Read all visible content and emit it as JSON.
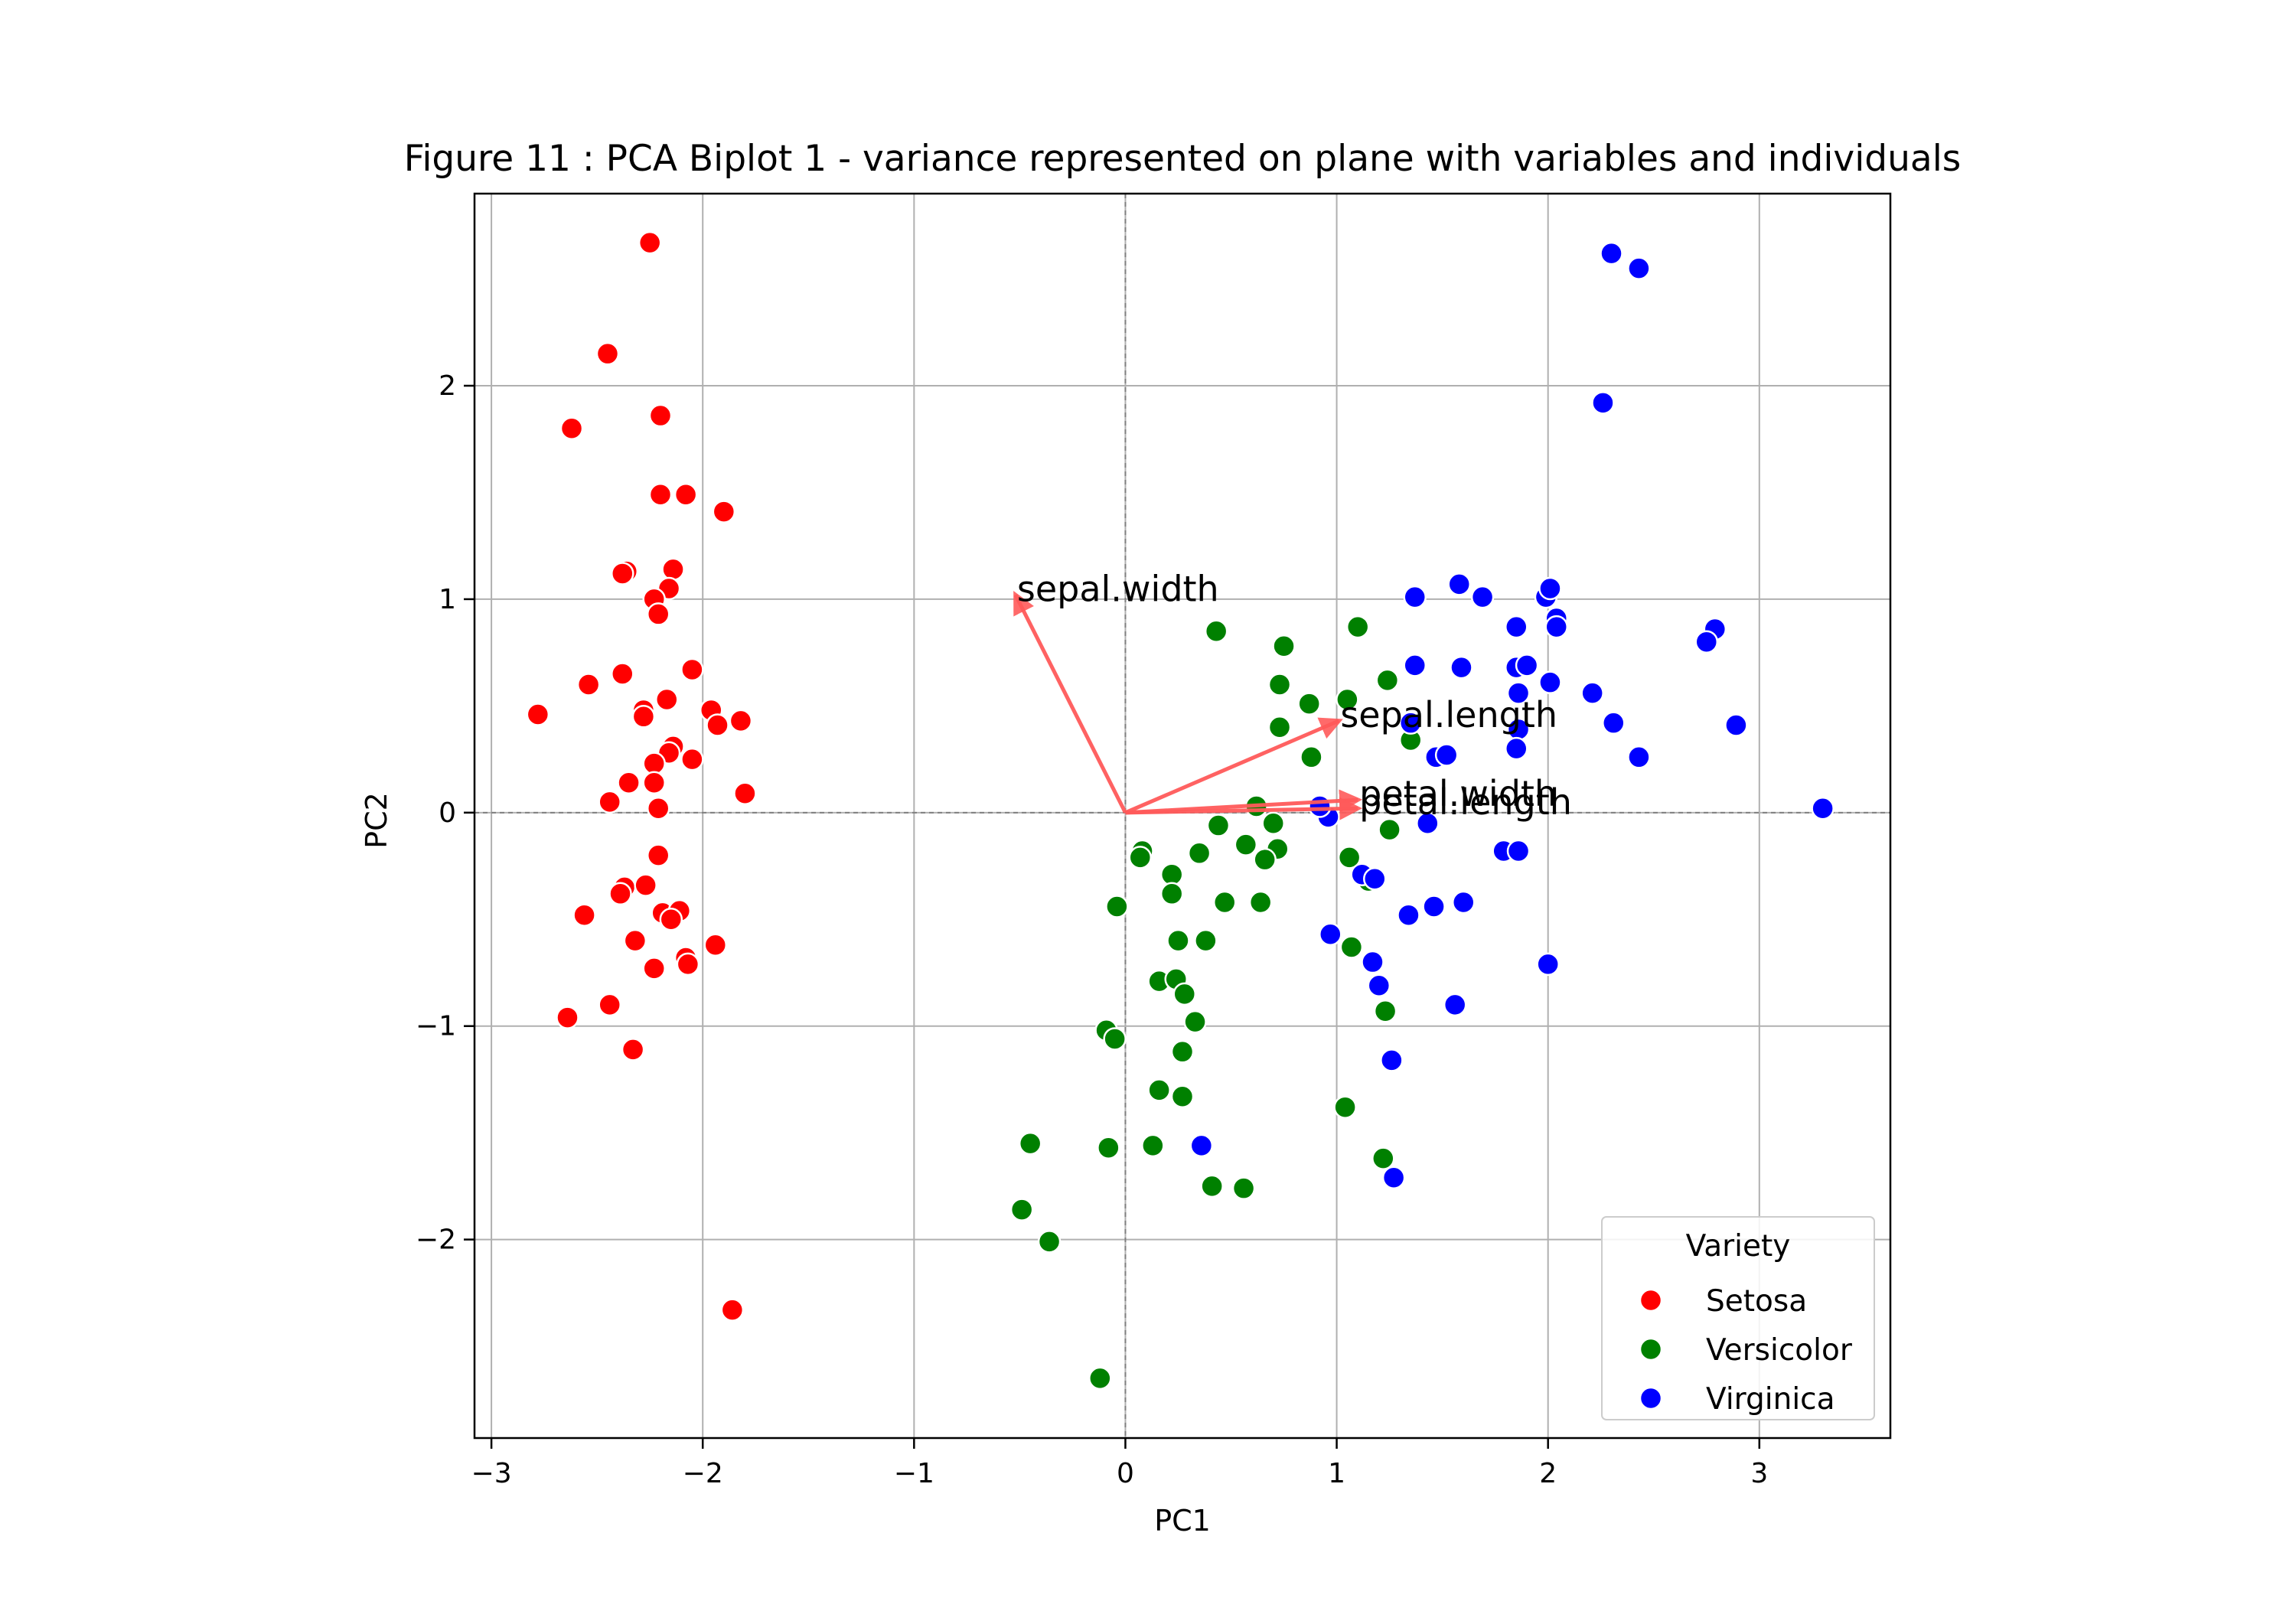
{
  "chart_data": {
    "type": "scatter",
    "title": "Figure 11 : PCA Biplot 1 - variance represented on plane with variables and individuals",
    "xlabel": "PC1",
    "ylabel": "PC2",
    "xlim": [
      -3.08,
      3.62
    ],
    "ylim": [
      -2.93,
      2.9
    ],
    "xticks": [
      -3,
      -2,
      -1,
      0,
      1,
      2,
      3
    ],
    "yticks": [
      -2,
      -1,
      0,
      1,
      2
    ],
    "grid": true,
    "legend": {
      "title": "Variety",
      "placement": "bottom-right",
      "entries": [
        "Setosa",
        "Versicolor",
        "Virginica"
      ]
    },
    "colors": {
      "Setosa": "#ff0000",
      "Versicolor": "#008000",
      "Virginica": "#0000ff",
      "vectors": "#ff5a5a"
    },
    "series": [
      {
        "name": "Setosa",
        "points": [
          [
            -2.25,
            2.67
          ],
          [
            -2.45,
            2.15
          ],
          [
            -2.62,
            1.8
          ],
          [
            -2.2,
            1.86
          ],
          [
            -2.2,
            1.49
          ],
          [
            -2.08,
            1.49
          ],
          [
            -1.9,
            1.41
          ],
          [
            -2.36,
            1.13
          ],
          [
            -2.38,
            1.12
          ],
          [
            -2.14,
            1.14
          ],
          [
            -2.16,
            1.05
          ],
          [
            -2.23,
            1.0
          ],
          [
            -2.21,
            0.93
          ],
          [
            -2.38,
            0.65
          ],
          [
            -2.05,
            0.67
          ],
          [
            -2.54,
            0.6
          ],
          [
            -2.78,
            0.46
          ],
          [
            -2.28,
            0.48
          ],
          [
            -2.17,
            0.53
          ],
          [
            -2.28,
            0.45
          ],
          [
            -1.96,
            0.48
          ],
          [
            -1.93,
            0.41
          ],
          [
            -1.82,
            0.43
          ],
          [
            -2.14,
            0.31
          ],
          [
            -2.16,
            0.28
          ],
          [
            -2.05,
            0.25
          ],
          [
            -2.23,
            0.23
          ],
          [
            -2.35,
            0.14
          ],
          [
            -2.23,
            0.14
          ],
          [
            -1.8,
            0.09
          ],
          [
            -2.44,
            0.05
          ],
          [
            -2.21,
            0.02
          ],
          [
            -2.21,
            -0.2
          ],
          [
            -2.37,
            -0.35
          ],
          [
            -2.27,
            -0.34
          ],
          [
            -2.39,
            -0.38
          ],
          [
            -2.19,
            -0.47
          ],
          [
            -2.11,
            -0.46
          ],
          [
            -2.56,
            -0.48
          ],
          [
            -2.15,
            -0.5
          ],
          [
            -2.32,
            -0.6
          ],
          [
            -1.94,
            -0.62
          ],
          [
            -2.08,
            -0.68
          ],
          [
            -2.07,
            -0.71
          ],
          [
            -2.23,
            -0.73
          ],
          [
            -2.44,
            -0.9
          ],
          [
            -2.64,
            -0.96
          ],
          [
            -2.33,
            -1.11
          ],
          [
            -1.86,
            -2.33
          ]
        ]
      },
      {
        "name": "Versicolor",
        "points": [
          [
            0.43,
            0.85
          ],
          [
            1.1,
            0.87
          ],
          [
            0.75,
            0.78
          ],
          [
            0.73,
            0.6
          ],
          [
            1.24,
            0.62
          ],
          [
            0.87,
            0.51
          ],
          [
            1.05,
            0.53
          ],
          [
            0.73,
            0.4
          ],
          [
            1.35,
            0.34
          ],
          [
            0.88,
            0.26
          ],
          [
            0.62,
            0.03
          ],
          [
            0.7,
            -0.05
          ],
          [
            0.44,
            -0.06
          ],
          [
            0.57,
            -0.15
          ],
          [
            0.72,
            -0.17
          ],
          [
            0.35,
            -0.19
          ],
          [
            0.08,
            -0.18
          ],
          [
            0.07,
            -0.21
          ],
          [
            0.66,
            -0.22
          ],
          [
            1.06,
            -0.21
          ],
          [
            1.25,
            -0.08
          ],
          [
            0.22,
            -0.29
          ],
          [
            0.22,
            -0.38
          ],
          [
            1.15,
            -0.32
          ],
          [
            0.47,
            -0.42
          ],
          [
            0.64,
            -0.42
          ],
          [
            -0.04,
            -0.44
          ],
          [
            0.25,
            -0.6
          ],
          [
            0.38,
            -0.6
          ],
          [
            1.07,
            -0.63
          ],
          [
            0.16,
            -0.79
          ],
          [
            0.24,
            -0.78
          ],
          [
            0.28,
            -0.85
          ],
          [
            1.23,
            -0.93
          ],
          [
            0.33,
            -0.98
          ],
          [
            -0.09,
            -1.02
          ],
          [
            -0.05,
            -1.06
          ],
          [
            0.27,
            -1.12
          ],
          [
            0.16,
            -1.3
          ],
          [
            0.27,
            -1.33
          ],
          [
            1.04,
            -1.38
          ],
          [
            -0.45,
            -1.55
          ],
          [
            -0.08,
            -1.57
          ],
          [
            0.13,
            -1.56
          ],
          [
            1.22,
            -1.62
          ],
          [
            0.41,
            -1.75
          ],
          [
            0.56,
            -1.76
          ],
          [
            -0.49,
            -1.86
          ],
          [
            -0.36,
            -2.01
          ],
          [
            -0.12,
            -2.65
          ]
        ]
      },
      {
        "name": "Virginica",
        "points": [
          [
            2.3,
            2.62
          ],
          [
            2.43,
            2.55
          ],
          [
            2.26,
            1.92
          ],
          [
            1.58,
            1.07
          ],
          [
            1.69,
            1.01
          ],
          [
            1.99,
            1.01
          ],
          [
            2.01,
            1.05
          ],
          [
            1.37,
            1.01
          ],
          [
            2.04,
            0.91
          ],
          [
            2.04,
            0.87
          ],
          [
            1.85,
            0.87
          ],
          [
            2.79,
            0.86
          ],
          [
            2.75,
            0.8
          ],
          [
            1.37,
            0.69
          ],
          [
            1.59,
            0.68
          ],
          [
            1.85,
            0.68
          ],
          [
            1.9,
            0.69
          ],
          [
            2.01,
            0.61
          ],
          [
            1.86,
            0.56
          ],
          [
            2.21,
            0.56
          ],
          [
            1.35,
            0.42
          ],
          [
            2.31,
            0.42
          ],
          [
            2.89,
            0.41
          ],
          [
            1.86,
            0.39
          ],
          [
            1.85,
            0.3
          ],
          [
            2.43,
            0.26
          ],
          [
            1.47,
            0.26
          ],
          [
            1.52,
            0.27
          ],
          [
            3.3,
            0.02
          ],
          [
            0.96,
            -0.02
          ],
          [
            1.43,
            -0.05
          ],
          [
            0.92,
            0.03
          ],
          [
            1.12,
            -0.29
          ],
          [
            1.79,
            -0.18
          ],
          [
            1.86,
            -0.18
          ],
          [
            1.18,
            -0.31
          ],
          [
            1.46,
            -0.44
          ],
          [
            1.6,
            -0.42
          ],
          [
            1.34,
            -0.48
          ],
          [
            0.97,
            -0.57
          ],
          [
            1.17,
            -0.7
          ],
          [
            2.0,
            -0.71
          ],
          [
            1.2,
            -0.81
          ],
          [
            1.56,
            -0.9
          ],
          [
            1.26,
            -1.16
          ],
          [
            0.36,
            -1.56
          ],
          [
            1.27,
            -1.71
          ]
        ]
      }
    ],
    "vectors": [
      {
        "label": "sepal.width",
        "x": -0.52,
        "y": 1.02
      },
      {
        "label": "sepal.length",
        "x": 1.01,
        "y": 0.43
      },
      {
        "label": "petal.width",
        "x": 1.1,
        "y": 0.06
      },
      {
        "label": "petal.length",
        "x": 1.1,
        "y": 0.02
      }
    ]
  }
}
